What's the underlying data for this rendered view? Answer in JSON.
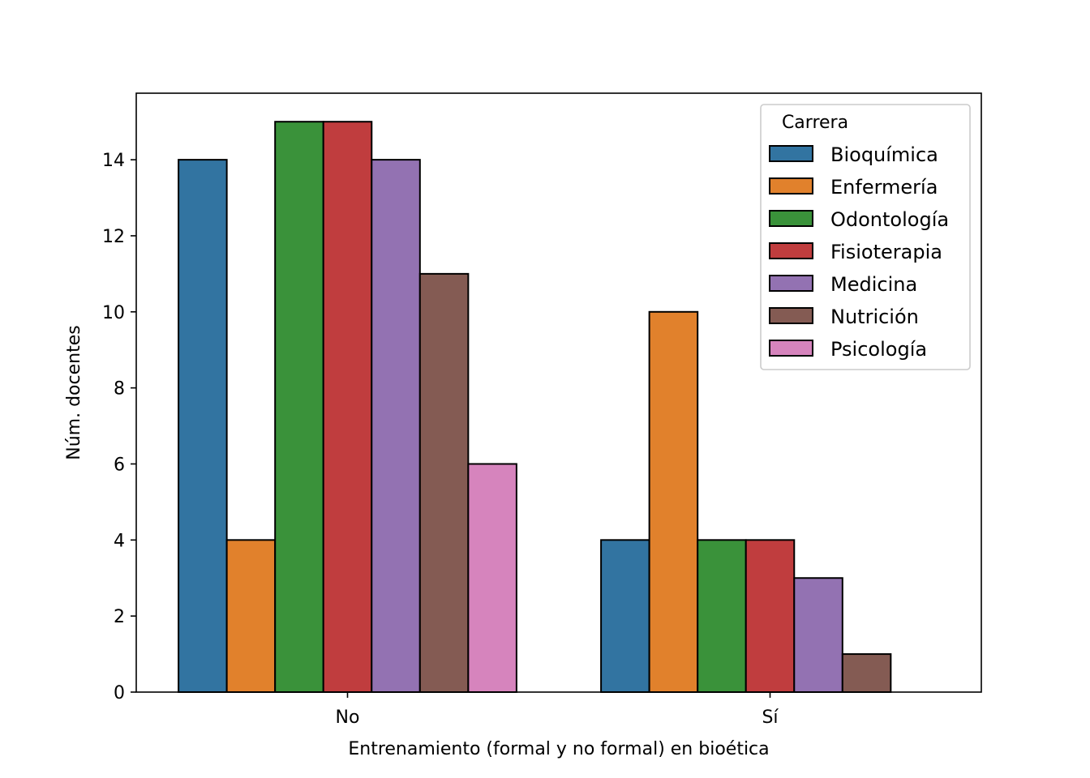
{
  "chart_data": {
    "type": "bar",
    "title": "",
    "xlabel": "Entrenamiento (formal y no formal) en bioética",
    "ylabel": "Núm. docentes",
    "categories": [
      "No",
      "Sí"
    ],
    "ylim": [
      0,
      15.75
    ],
    "yticks": [
      0,
      2,
      4,
      6,
      8,
      10,
      12,
      14
    ],
    "grid": false,
    "legend": {
      "title": "Carrera",
      "placement": "top-right"
    },
    "series": [
      {
        "name": "Bioquímica",
        "color": "#3274a1",
        "values": [
          14,
          4
        ]
      },
      {
        "name": "Enfermería",
        "color": "#e1812c",
        "values": [
          4,
          10
        ]
      },
      {
        "name": "Odontología",
        "color": "#3a923a",
        "values": [
          15,
          4
        ]
      },
      {
        "name": "Fisioterapia",
        "color": "#c03d3e",
        "values": [
          15,
          4
        ]
      },
      {
        "name": "Medicina",
        "color": "#9372b2",
        "values": [
          14,
          3
        ]
      },
      {
        "name": "Nutrición",
        "color": "#845b53",
        "values": [
          11,
          1
        ]
      },
      {
        "name": "Psicología",
        "color": "#d684bd",
        "values": [
          6,
          0
        ]
      }
    ]
  }
}
